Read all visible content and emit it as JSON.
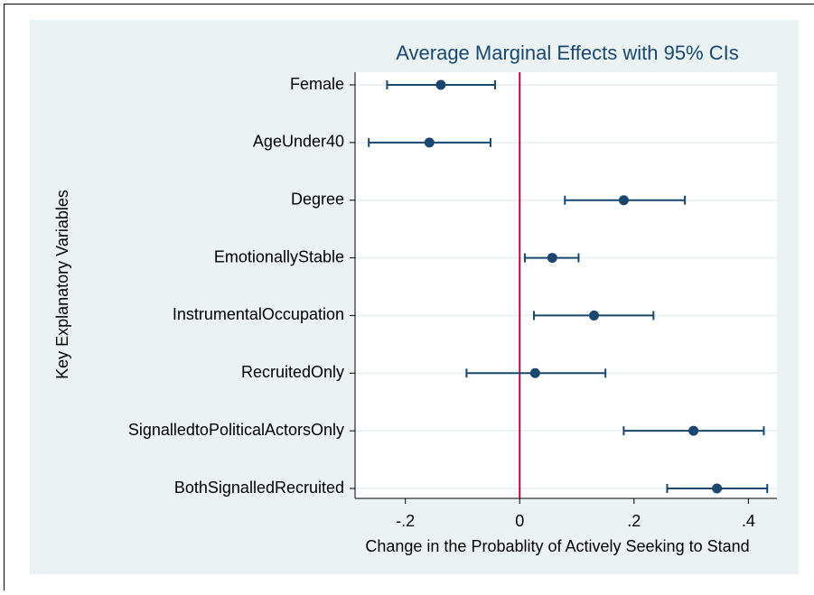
{
  "chart_data": {
    "type": "dot-ci",
    "title": "Average Marginal Effects with 95% CIs",
    "x_label": "Change in the Probablity of Actively Seeking to Stand",
    "y_label": "Key Explanatory Variables",
    "categories": [
      "Female",
      "AgeUnder40",
      "Degree",
      "EmotionallyStable",
      "InstrumentalOccupation",
      "RecruitedOnly",
      "SignalledtoPoliticalActorsOnly",
      "BothSignalledRecruited"
    ],
    "series": [
      {
        "color": "#1a476f",
        "values": [
          -0.138,
          -0.158,
          0.182,
          0.057,
          0.13,
          0.027,
          0.304,
          0.345
        ],
        "lower": [
          -0.232,
          -0.264,
          0.079,
          0.009,
          0.025,
          -0.093,
          0.182,
          0.258
        ],
        "upper": [
          -0.043,
          -0.051,
          0.289,
          0.103,
          0.234,
          0.15,
          0.427,
          0.433
        ]
      }
    ],
    "xlim": [
      -0.288,
      0.45
    ],
    "xticks": [
      {
        "value": -0.2,
        "label": "-.2"
      },
      0,
      {
        "value": 0.2,
        "label": ".2"
      },
      {
        "value": 0.4,
        "label": ".4"
      }
    ],
    "reference_line": {
      "x": 0,
      "color": "#c10534"
    },
    "grid": true
  }
}
